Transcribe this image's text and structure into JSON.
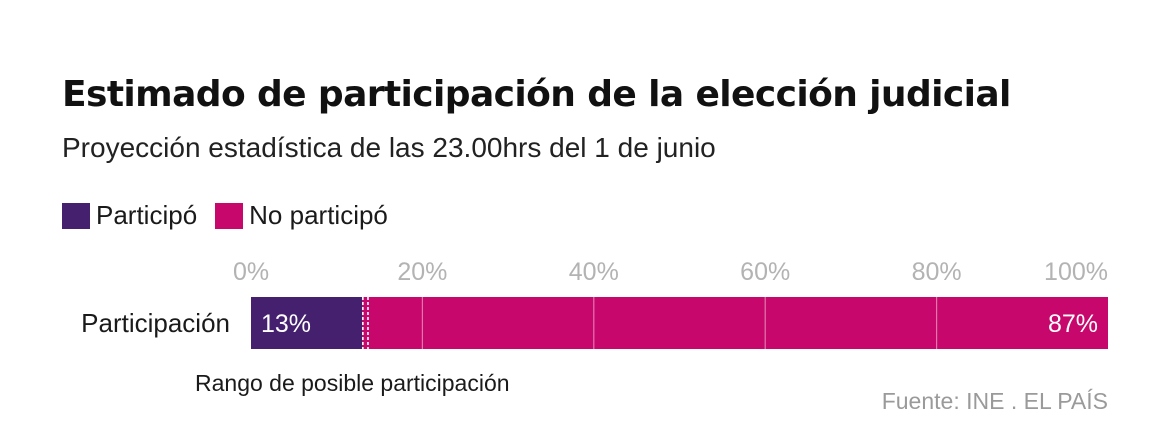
{
  "title": "Estimado de participación de la elección judicial",
  "subtitle": "Proyección estadística de las 23.00hrs del 1 de junio",
  "source": "Fuente: INE . EL PAÍS",
  "colors": {
    "participo": "#45206f",
    "no_participo": "#c8076d",
    "tick_text": "#b3b3b3",
    "range_marker": "#ffffff"
  },
  "legend": [
    {
      "label": "Participó",
      "color": "#45206f"
    },
    {
      "label": "No participó",
      "color": "#c8076d"
    }
  ],
  "chart_data": {
    "type": "bar",
    "orientation": "horizontal",
    "stacked": true,
    "categories": [
      "Participación"
    ],
    "series": [
      {
        "name": "Participó",
        "values": [
          13
        ],
        "label": "13%"
      },
      {
        "name": "No participó",
        "values": [
          87
        ],
        "label": "87%"
      }
    ],
    "xlim": [
      0,
      100
    ],
    "xticks": [
      0,
      20,
      40,
      60,
      80,
      100
    ],
    "xtick_labels": [
      "0%",
      "20%",
      "40%",
      "60%",
      "80%",
      "100%"
    ],
    "axis_position": "top",
    "grid": true,
    "legend_position": "top-left",
    "range": {
      "label": "Rango de posible participación",
      "low": 12.7,
      "high": 13.3
    }
  }
}
